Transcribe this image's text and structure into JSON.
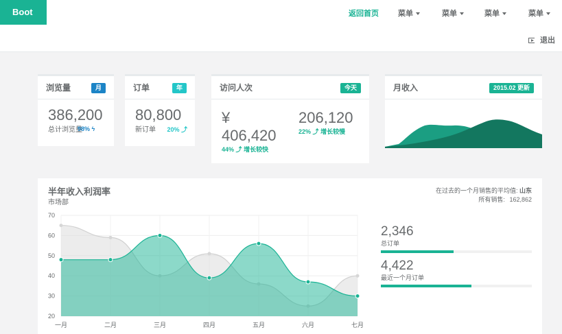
{
  "nav": {
    "brand": "Boot",
    "items": [
      {
        "label": "返回首页",
        "active": true
      },
      {
        "label": "菜单"
      },
      {
        "label": "菜单"
      },
      {
        "label": "菜单"
      },
      {
        "label": "菜单"
      }
    ],
    "logout": "退出"
  },
  "cards": {
    "views": {
      "title": "浏览量",
      "badge": "月",
      "value": "386,200",
      "sub": "总计浏览量",
      "stat": "98%"
    },
    "orders": {
      "title": "订单",
      "badge": "年",
      "value": "80,800",
      "sub": "新订单",
      "stat": "20%"
    },
    "visits": {
      "title": "访问人次",
      "badge": "今天",
      "currency": "¥",
      "value_left": "406,420",
      "stat_left": "44%",
      "stat_left_text": "增长较快",
      "value_right": "206,120",
      "stat_right": "22%",
      "stat_right_text": "增长较慢"
    },
    "income": {
      "title": "月收入",
      "badge": "2015.02 更新"
    }
  },
  "main": {
    "title": "半年收入利润率",
    "subtitle": "市场部",
    "right_line1_prefix": "在过去的一个月销售的平均值:",
    "right_line1_value": "山东",
    "right_line2_prefix": "所有销售:",
    "right_line2_value": "162,862",
    "stats": [
      {
        "value": "2,346",
        "label": "总订单",
        "progress": 0.48
      },
      {
        "value": "4,422",
        "label": "最近一个月订单",
        "progress": 0.6
      }
    ]
  },
  "chart_data": {
    "type": "area",
    "categories": [
      "一月",
      "二月",
      "三月",
      "四月",
      "五月",
      "六月",
      "七月"
    ],
    "ylim": [
      20,
      70
    ],
    "yticks": [
      20,
      30,
      40,
      50,
      60,
      70
    ],
    "series": [
      {
        "values": [
          65,
          59,
          40,
          51,
          36,
          25,
          40
        ],
        "color": "#dcdcdc"
      },
      {
        "values": [
          48,
          48,
          60,
          39,
          56,
          37,
          30
        ],
        "color": "#1ab394"
      }
    ],
    "grid": true
  },
  "colors": {
    "accent": "#1ab394",
    "blue": "#1c84c6",
    "cyan": "#23c6c8"
  }
}
